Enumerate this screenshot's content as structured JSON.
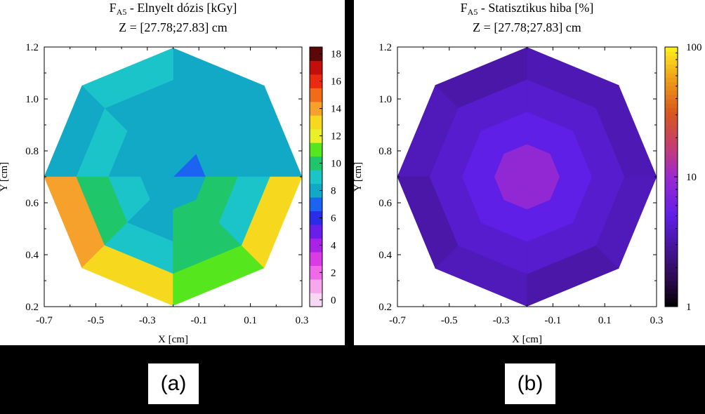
{
  "chart_data": [
    {
      "type": "heatmap",
      "title_main": "F",
      "title_sub": "A5",
      "title_rest": " - Elnyelt dózis [kGy]",
      "subtitle": "Z = [27.78;27.83] cm",
      "xlabel": "X [cm]",
      "ylabel": "Y [cm]",
      "xlim": [
        -0.7,
        0.3
      ],
      "ylim": [
        0.2,
        1.2
      ],
      "x_ticks": [
        "-0.7",
        "-0.5",
        "-0.3",
        "-0.1",
        "0.1",
        "0.3"
      ],
      "y_ticks": [
        "0.2",
        "0.4",
        "0.6",
        "0.8",
        "1.0",
        "1.2"
      ],
      "center": [
        -0.2,
        0.7
      ],
      "ring_edges": [
        0,
        0.125,
        0.25,
        0.375,
        0.5
      ],
      "sectors": 8,
      "ring_values": [
        [
          7,
          8,
          8,
          8,
          8,
          8,
          8,
          8
        ],
        [
          8,
          8,
          8,
          8,
          9,
          8,
          10,
          10
        ],
        [
          8,
          8,
          8,
          9,
          10,
          9,
          10,
          9
        ],
        [
          8,
          8,
          9,
          8,
          14,
          13,
          11,
          13
        ]
      ],
      "colorbar": {
        "levels": [
          0,
          1,
          2,
          3,
          4,
          5,
          6,
          7,
          8,
          9,
          10,
          11,
          12,
          13,
          14,
          15,
          16,
          17,
          18
        ],
        "tick_labels": [
          "0",
          "2",
          "4",
          "6",
          "8",
          "10",
          "12",
          "14",
          "16",
          "18"
        ],
        "colors": [
          "#f7d7f3",
          "#f7a8ec",
          "#ef6ae6",
          "#d93be5",
          "#a822e8",
          "#6a1ee9",
          "#2a2ce8",
          "#1b63f0",
          "#12a9c6",
          "#1bc4c9",
          "#1fc76a",
          "#56e61e",
          "#e9ef29",
          "#f6d91e",
          "#f6a12c",
          "#f26b18",
          "#ec2a12",
          "#c20f0b",
          "#5a0908"
        ]
      },
      "caption": "(a)"
    },
    {
      "type": "heatmap",
      "title_main": "F",
      "title_sub": "A5",
      "title_rest": " - Statisztikus hiba [%]",
      "subtitle": "Z = [27.78;27.83] cm",
      "xlabel": "X [cm]",
      "ylabel": "Y [cm]",
      "xlim": [
        -0.7,
        0.3
      ],
      "ylim": [
        0.2,
        1.2
      ],
      "x_ticks": [
        "-0.7",
        "-0.5",
        "-0.3",
        "-0.1",
        "0.1",
        "0.3"
      ],
      "y_ticks": [
        "0.2",
        "0.4",
        "0.6",
        "0.8",
        "1.0",
        "1.2"
      ],
      "center": [
        -0.2,
        0.7
      ],
      "ring_edges": [
        0,
        0.125,
        0.25,
        0.375,
        0.5
      ],
      "sectors": 8,
      "ring_values": [
        [
          9,
          9,
          8.8,
          8.8,
          9,
          8.8,
          8.8,
          9
        ],
        [
          5,
          5,
          5,
          5,
          5,
          5,
          5,
          5
        ],
        [
          4.2,
          4.2,
          4.2,
          4.2,
          4.2,
          4.2,
          4.2,
          4.2
        ],
        [
          3.5,
          3.5,
          3.2,
          3.6,
          3.2,
          3.6,
          3.2,
          3.6
        ]
      ],
      "colorbar": {
        "scale": "log",
        "range": [
          1,
          100
        ],
        "tick_values": [
          1,
          10,
          100
        ],
        "tick_labels": [
          "1",
          "10",
          "100"
        ]
      },
      "caption": "(b)"
    }
  ]
}
